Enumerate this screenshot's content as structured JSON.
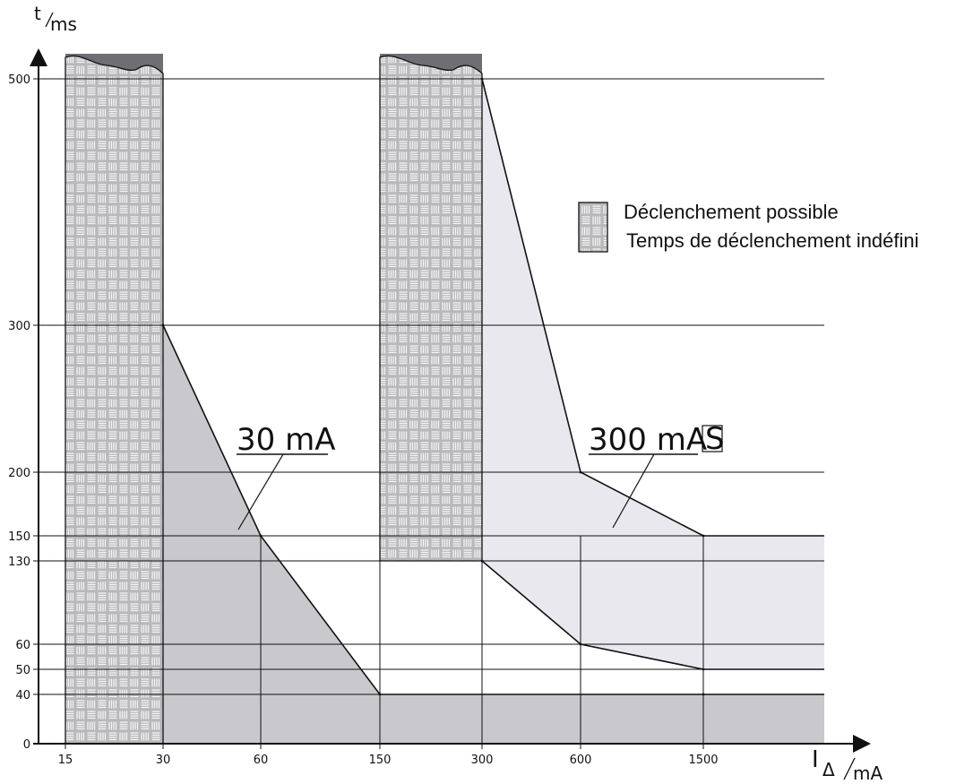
{
  "chart_data": {
    "type": "area",
    "x_axis": {
      "label_main": "I",
      "label_sub": "Δ",
      "label_unit": "mA",
      "categories": [
        "15",
        "30",
        "60",
        "150",
        "300",
        "600",
        "1500"
      ]
    },
    "y_axis": {
      "label_main": "t",
      "label_unit": "ms",
      "ticks": [
        0,
        40,
        50,
        60,
        130,
        150,
        200,
        300,
        500
      ]
    },
    "series": [
      {
        "name": "30 mA",
        "lower": [
          {
            "x": "30",
            "y": 0
          },
          {
            "x": "1500",
            "y": 0
          }
        ],
        "upper": [
          {
            "x": "30",
            "y": 300
          },
          {
            "x": "60",
            "y": 150
          },
          {
            "x": "150",
            "y": 40
          },
          {
            "x": "1500",
            "y": 40
          }
        ],
        "color": "#c9c9cd"
      },
      {
        "name": "300 mA",
        "badge": "S",
        "lower": [
          {
            "x": "300",
            "y": 130
          },
          {
            "x": "600",
            "y": 60
          },
          {
            "x": "1500",
            "y": 50
          }
        ],
        "upper": [
          {
            "x": "300",
            "y": 500
          },
          {
            "x": "600",
            "y": 200
          },
          {
            "x": "1500",
            "y": 150
          }
        ],
        "color": "#e8e8ee"
      }
    ],
    "hatched_regions": [
      {
        "x_from": "15",
        "x_to": "30",
        "y_from": 0,
        "y_to": 500
      },
      {
        "x_from": "150",
        "x_to": "300",
        "y_from": 130,
        "y_to": 500
      }
    ],
    "legend": {
      "line1": "Déclenchement possible",
      "line2": "Temps de déclenchement indéfini",
      "placement": "top-right"
    },
    "colors": {
      "hatch_fill": "#b8b8bc",
      "hatch_bars": "#f2f2f2",
      "cap": "#6e6e74",
      "lines": "#111111"
    }
  }
}
